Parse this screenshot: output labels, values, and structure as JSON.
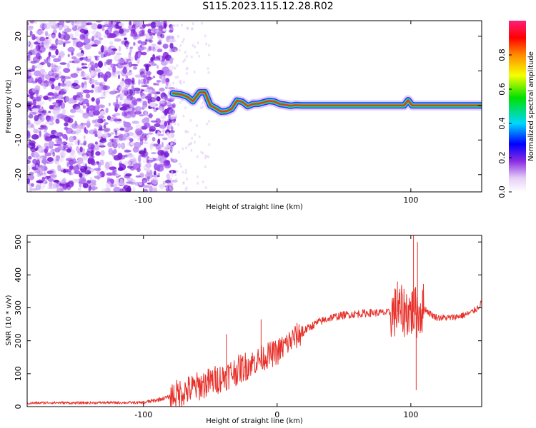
{
  "title": "S115.2023.115.12.28.R02",
  "chart_data": [
    {
      "type": "heatmap",
      "xlabel": "Height of straight line (km)",
      "ylabel": "Frequency (Hz)",
      "xlim": [
        -187,
        153
      ],
      "ylim": [
        -25,
        24.5
      ],
      "xticks": [
        -100,
        0,
        100
      ],
      "xtick_labels": [
        "-100",
        "",
        "100"
      ],
      "yticks": [
        -20,
        -10,
        0,
        10,
        20
      ],
      "yaxis_tick_labels": [
        "-20",
        "-10",
        "0",
        "10",
        "20"
      ],
      "colorbar": {
        "label": "Normalized spectral amplitude",
        "range": [
          0,
          1
        ],
        "ticks": [
          0.0,
          0.2,
          0.4,
          0.6,
          0.8
        ],
        "tick_labels": [
          "0.0",
          "0.2",
          "0.4",
          "0.6",
          "0.8"
        ]
      },
      "noise_region_km": [
        -187,
        -80
      ],
      "ridge": {
        "x": [
          -78,
          -72,
          -67,
          -63,
          -58,
          -54,
          -50,
          -46,
          -42,
          -38,
          -34,
          -30,
          -26,
          -22,
          -18,
          -14,
          -10,
          -6,
          -2,
          2,
          6,
          10,
          14,
          18,
          22,
          30,
          40,
          50,
          60,
          70,
          80,
          90,
          95,
          98,
          101,
          110,
          120,
          130,
          140,
          153
        ],
        "freq_hz": [
          3.5,
          3.2,
          2.5,
          1.2,
          3.8,
          3.8,
          0.0,
          -0.8,
          -1.8,
          -1.7,
          -1.0,
          1.4,
          1.0,
          -0.2,
          0.4,
          0.5,
          0.9,
          1.3,
          1.1,
          0.4,
          0.2,
          -0.1,
          0.1,
          0.0,
          0.0,
          0.0,
          0.0,
          0.0,
          0.0,
          0.0,
          0.0,
          0.0,
          0.0,
          1.5,
          0.0,
          0.0,
          0.0,
          0.0,
          0.0,
          0.0
        ]
      }
    },
    {
      "type": "line",
      "xlabel": "Height of straight line (km)",
      "ylabel": "SNR (10 * v/v)",
      "xlim": [
        -187,
        153
      ],
      "ylim": [
        0,
        520
      ],
      "xticks": [
        -100,
        0,
        100
      ],
      "xtick_labels": [
        "-100",
        "0",
        "100"
      ],
      "yticks": [
        0,
        100,
        200,
        300,
        400,
        500
      ],
      "yaxis_tick_labels": [
        "0",
        "100",
        "200",
        "300",
        "400",
        "500"
      ],
      "series": [
        {
          "color": "#e8312b",
          "x": [
            -187,
            -170,
            -150,
            -130,
            -110,
            -100,
            -90,
            -80,
            -70,
            -60,
            -50,
            -40,
            -30,
            -20,
            -10,
            0,
            10,
            20,
            30,
            40,
            50,
            60,
            70,
            80,
            85,
            90,
            95,
            100,
            105,
            110,
            115,
            120,
            130,
            140,
            145,
            150,
            153
          ],
          "values": [
            10,
            12,
            11,
            12,
            12,
            12,
            20,
            30,
            45,
            60,
            75,
            90,
            110,
            130,
            150,
            165,
            200,
            230,
            255,
            270,
            278,
            282,
            285,
            285,
            285,
            288,
            290,
            288,
            285,
            300,
            280,
            270,
            270,
            278,
            285,
            300,
            315
          ]
        }
      ],
      "spikes": [
        {
          "x": -60,
          "value": 100
        },
        {
          "x": -38,
          "value": 220
        },
        {
          "x": -12,
          "value": 265
        },
        {
          "x": 90,
          "value": 380
        },
        {
          "x": 102,
          "value": 520
        },
        {
          "x": 105,
          "value": 500
        },
        {
          "x": 104,
          "value": 50
        }
      ]
    }
  ]
}
